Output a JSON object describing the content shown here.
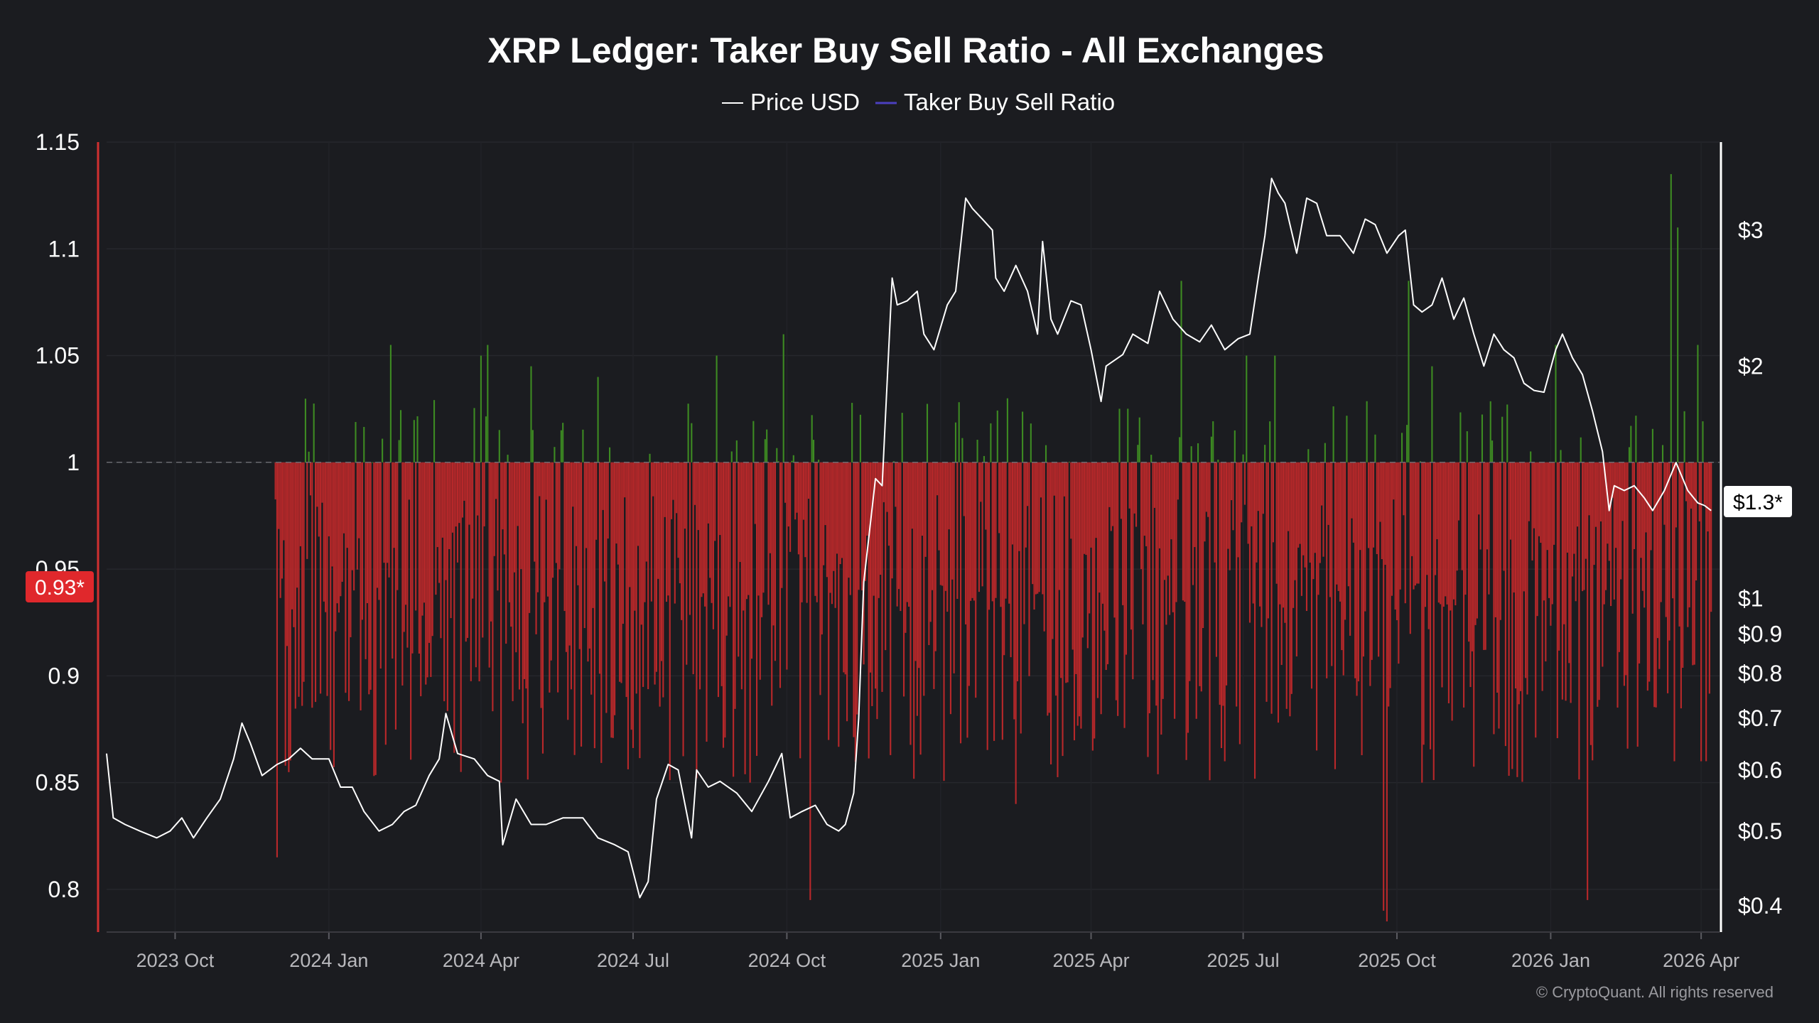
{
  "chart_data": {
    "type": "bar",
    "title": "XRP Ledger: Taker Buy Sell Ratio - All Exchanges",
    "legend": [
      {
        "name": "Price USD",
        "color": "#ffffff"
      },
      {
        "name": "Taker Buy Sell Ratio",
        "color": "#4b3fc0"
      }
    ],
    "legend_placement": "top-center",
    "y_left": {
      "ticks": [
        1.15,
        1.1,
        1.05,
        1,
        0.95,
        0.9,
        0.85,
        0.8
      ],
      "tick_labels": [
        "1.15",
        "1.1",
        "1.05",
        "1",
        "0.95",
        "0.9",
        "0.85",
        "0.8"
      ],
      "range": [
        0.78,
        1.15
      ],
      "current_value_label": "0.93*"
    },
    "y_right": {
      "scale": "log",
      "tick_values": [
        3,
        2,
        1,
        0.9,
        0.8,
        0.7,
        0.6,
        0.5,
        0.4
      ],
      "tick_labels": [
        "$3",
        "$2",
        "$1",
        "$0.9",
        "$0.8",
        "$0.7",
        "$0.6",
        "$0.5",
        "$0.4"
      ],
      "range": [
        0.37,
        3.9
      ],
      "current_value_label": "$1.3*"
    },
    "x_axis": {
      "range": [
        "2023-08-21",
        "2026-04-12"
      ],
      "ticks": [
        "2023-10-01",
        "2024-01-01",
        "2024-04-01",
        "2024-07-01",
        "2024-10-01",
        "2025-01-01",
        "2025-04-01",
        "2025-07-01",
        "2025-10-01",
        "2026-01-01",
        "2026-04-01"
      ],
      "tick_labels": [
        "2023 Oct",
        "2024 Jan",
        "2024 Apr",
        "2024 Jul",
        "2024 Oct",
        "2025 Jan",
        "2025 Apr",
        "2025 Jul",
        "2025 Oct",
        "2026 Jan",
        "2026 Apr"
      ]
    },
    "baseline": 1,
    "colors": {
      "above_baseline": "#3d8a22",
      "below_baseline": "#b8282a",
      "price_line": "#ffffff",
      "background": "#1b1c20",
      "left_axis_line": "#d03030",
      "current_ratio_badge": "#e0282c"
    },
    "grid": true,
    "series": [
      {
        "name": "Price USD",
        "points": [
          [
            "2023-08-21",
            0.63
          ],
          [
            "2023-08-25",
            0.52
          ],
          [
            "2023-09-01",
            0.51
          ],
          [
            "2023-09-10",
            0.5
          ],
          [
            "2023-09-20",
            0.49
          ],
          [
            "2023-09-28",
            0.5
          ],
          [
            "2023-10-05",
            0.52
          ],
          [
            "2023-10-12",
            0.49
          ],
          [
            "2023-10-20",
            0.52
          ],
          [
            "2023-10-28",
            0.55
          ],
          [
            "2023-11-05",
            0.62
          ],
          [
            "2023-11-10",
            0.69
          ],
          [
            "2023-11-15",
            0.65
          ],
          [
            "2023-11-22",
            0.59
          ],
          [
            "2023-12-01",
            0.61
          ],
          [
            "2023-12-08",
            0.62
          ],
          [
            "2023-12-15",
            0.64
          ],
          [
            "2023-12-22",
            0.62
          ],
          [
            "2024-01-01",
            0.62
          ],
          [
            "2024-01-08",
            0.57
          ],
          [
            "2024-01-15",
            0.57
          ],
          [
            "2024-01-22",
            0.53
          ],
          [
            "2024-01-31",
            0.5
          ],
          [
            "2024-02-08",
            0.51
          ],
          [
            "2024-02-15",
            0.53
          ],
          [
            "2024-02-22",
            0.54
          ],
          [
            "2024-03-01",
            0.59
          ],
          [
            "2024-03-07",
            0.62
          ],
          [
            "2024-03-11",
            0.71
          ],
          [
            "2024-03-18",
            0.63
          ],
          [
            "2024-03-28",
            0.62
          ],
          [
            "2024-04-05",
            0.59
          ],
          [
            "2024-04-12",
            0.58
          ],
          [
            "2024-04-14",
            0.48
          ],
          [
            "2024-04-22",
            0.55
          ],
          [
            "2024-05-01",
            0.51
          ],
          [
            "2024-05-10",
            0.51
          ],
          [
            "2024-05-20",
            0.52
          ],
          [
            "2024-06-01",
            0.52
          ],
          [
            "2024-06-10",
            0.49
          ],
          [
            "2024-06-20",
            0.48
          ],
          [
            "2024-06-28",
            0.47
          ],
          [
            "2024-07-05",
            0.41
          ],
          [
            "2024-07-10",
            0.43
          ],
          [
            "2024-07-15",
            0.55
          ],
          [
            "2024-07-22",
            0.61
          ],
          [
            "2024-07-28",
            0.6
          ],
          [
            "2024-08-05",
            0.49
          ],
          [
            "2024-08-08",
            0.6
          ],
          [
            "2024-08-15",
            0.57
          ],
          [
            "2024-08-22",
            0.58
          ],
          [
            "2024-09-01",
            0.56
          ],
          [
            "2024-09-10",
            0.53
          ],
          [
            "2024-09-20",
            0.58
          ],
          [
            "2024-09-28",
            0.63
          ],
          [
            "2024-10-03",
            0.52
          ],
          [
            "2024-10-10",
            0.53
          ],
          [
            "2024-10-18",
            0.54
          ],
          [
            "2024-10-25",
            0.51
          ],
          [
            "2024-11-01",
            0.5
          ],
          [
            "2024-11-05",
            0.51
          ],
          [
            "2024-11-10",
            0.56
          ],
          [
            "2024-11-13",
            0.7
          ],
          [
            "2024-11-16",
            1.05
          ],
          [
            "2024-11-23",
            1.43
          ],
          [
            "2024-11-27",
            1.4
          ],
          [
            "2024-12-03",
            2.6
          ],
          [
            "2024-12-06",
            2.4
          ],
          [
            "2024-12-12",
            2.43
          ],
          [
            "2024-12-18",
            2.5
          ],
          [
            "2024-12-22",
            2.2
          ],
          [
            "2024-12-28",
            2.1
          ],
          [
            "2025-01-05",
            2.4
          ],
          [
            "2025-01-10",
            2.5
          ],
          [
            "2025-01-16",
            3.3
          ],
          [
            "2025-01-20",
            3.2
          ],
          [
            "2025-01-26",
            3.1
          ],
          [
            "2025-02-01",
            3.0
          ],
          [
            "2025-02-03",
            2.6
          ],
          [
            "2025-02-08",
            2.5
          ],
          [
            "2025-02-15",
            2.7
          ],
          [
            "2025-02-22",
            2.5
          ],
          [
            "2025-02-28",
            2.2
          ],
          [
            "2025-03-03",
            2.9
          ],
          [
            "2025-03-08",
            2.3
          ],
          [
            "2025-03-12",
            2.2
          ],
          [
            "2025-03-20",
            2.43
          ],
          [
            "2025-03-26",
            2.4
          ],
          [
            "2025-04-01",
            2.1
          ],
          [
            "2025-04-07",
            1.8
          ],
          [
            "2025-04-10",
            2.0
          ],
          [
            "2025-04-20",
            2.07
          ],
          [
            "2025-04-26",
            2.2
          ],
          [
            "2025-05-05",
            2.14
          ],
          [
            "2025-05-12",
            2.5
          ],
          [
            "2025-05-20",
            2.3
          ],
          [
            "2025-05-28",
            2.2
          ],
          [
            "2025-06-05",
            2.15
          ],
          [
            "2025-06-12",
            2.26
          ],
          [
            "2025-06-20",
            2.1
          ],
          [
            "2025-06-28",
            2.17
          ],
          [
            "2025-07-05",
            2.2
          ],
          [
            "2025-07-10",
            2.6
          ],
          [
            "2025-07-14",
            2.95
          ],
          [
            "2025-07-18",
            3.5
          ],
          [
            "2025-07-22",
            3.35
          ],
          [
            "2025-07-26",
            3.25
          ],
          [
            "2025-08-02",
            2.8
          ],
          [
            "2025-08-08",
            3.3
          ],
          [
            "2025-08-14",
            3.25
          ],
          [
            "2025-08-20",
            2.95
          ],
          [
            "2025-08-28",
            2.95
          ],
          [
            "2025-09-05",
            2.8
          ],
          [
            "2025-09-12",
            3.1
          ],
          [
            "2025-09-18",
            3.05
          ],
          [
            "2025-09-25",
            2.8
          ],
          [
            "2025-10-02",
            2.95
          ],
          [
            "2025-10-06",
            3.0
          ],
          [
            "2025-10-11",
            2.4
          ],
          [
            "2025-10-16",
            2.35
          ],
          [
            "2025-10-22",
            2.4
          ],
          [
            "2025-10-28",
            2.6
          ],
          [
            "2025-11-04",
            2.3
          ],
          [
            "2025-11-10",
            2.45
          ],
          [
            "2025-11-16",
            2.2
          ],
          [
            "2025-11-22",
            2.0
          ],
          [
            "2025-11-28",
            2.2
          ],
          [
            "2025-12-04",
            2.1
          ],
          [
            "2025-12-10",
            2.05
          ],
          [
            "2025-12-16",
            1.9
          ],
          [
            "2025-12-22",
            1.86
          ],
          [
            "2025-12-28",
            1.85
          ],
          [
            "2026-01-04",
            2.1
          ],
          [
            "2026-01-08",
            2.2
          ],
          [
            "2026-01-14",
            2.05
          ],
          [
            "2026-01-20",
            1.95
          ],
          [
            "2026-01-26",
            1.75
          ],
          [
            "2026-02-01",
            1.55
          ],
          [
            "2026-02-05",
            1.3
          ],
          [
            "2026-02-08",
            1.4
          ],
          [
            "2026-02-14",
            1.38
          ],
          [
            "2026-02-20",
            1.4
          ],
          [
            "2026-02-26",
            1.35
          ],
          [
            "2026-03-03",
            1.3
          ],
          [
            "2026-03-10",
            1.38
          ],
          [
            "2026-03-17",
            1.5
          ],
          [
            "2026-03-24",
            1.38
          ],
          [
            "2026-03-30",
            1.33
          ],
          [
            "2026-04-03",
            1.32
          ],
          [
            "2026-04-07",
            1.3
          ]
        ]
      },
      {
        "name": "Taker Buy Sell Ratio",
        "note": "daily bars, green above 1 and red below 1",
        "start_date": "2023-11-30",
        "end_date": "2026-04-07",
        "min_value": 0.8,
        "max_value": 1.135,
        "points": [
          [
            "2023-12-20",
            1.005
          ],
          [
            "2024-02-07",
            1.055
          ],
          [
            "2024-04-01",
            1.05
          ],
          [
            "2024-04-05",
            1.055
          ],
          [
            "2024-05-01",
            1.045
          ],
          [
            "2024-06-10",
            1.04
          ],
          [
            "2024-08-20",
            1.05
          ],
          [
            "2024-09-29",
            1.06
          ],
          [
            "2025-02-10",
            1.03
          ],
          [
            "2025-05-25",
            1.085
          ],
          [
            "2025-07-03",
            1.05
          ],
          [
            "2025-07-20",
            1.05
          ],
          [
            "2025-10-08",
            1.085
          ],
          [
            "2025-10-22",
            1.045
          ],
          [
            "2026-01-04",
            1.055
          ],
          [
            "2026-03-14",
            1.135
          ],
          [
            "2026-03-18",
            1.11
          ],
          [
            "2026-03-30",
            1.055
          ],
          [
            "2023-12-01",
            0.815
          ],
          [
            "2024-04-13",
            0.85
          ],
          [
            "2024-09-09",
            0.85
          ],
          [
            "2024-10-15",
            0.795
          ],
          [
            "2025-02-15",
            0.84
          ],
          [
            "2025-05-05",
            0.862
          ],
          [
            "2025-06-20",
            0.86
          ],
          [
            "2025-09-23",
            0.79
          ],
          [
            "2025-09-25",
            0.785
          ],
          [
            "2025-10-16",
            0.85
          ],
          [
            "2026-01-23",
            0.795
          ],
          [
            "2026-03-16",
            0.86
          ],
          [
            "2026-04-01",
            0.86
          ],
          [
            "2026-04-07",
            0.93
          ]
        ]
      }
    ],
    "copyright": "© CryptoQuant. All rights reserved"
  }
}
